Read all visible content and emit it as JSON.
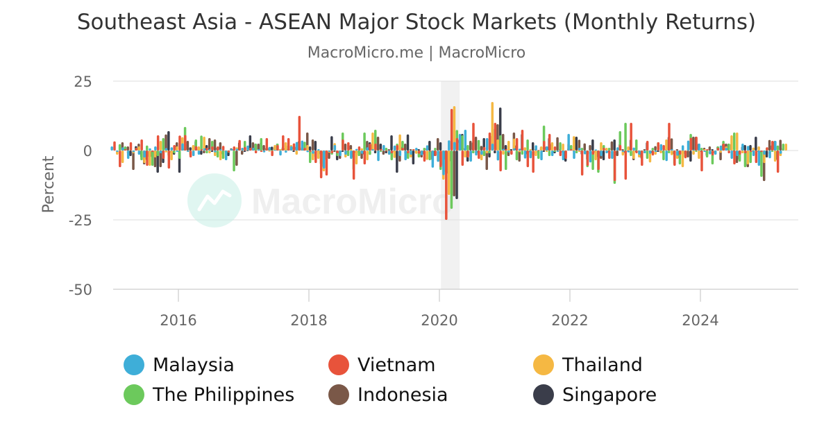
{
  "chart_data": {
    "type": "bar",
    "title": "Southeast Asia - ASEAN Major Stock Markets (Monthly Returns)",
    "subtitle": "MacroMicro.me | MacroMicro",
    "ylabel": "Percent",
    "ylim": [
      -50,
      25
    ],
    "yticks": [
      25,
      0,
      -25,
      -50
    ],
    "xticks": [
      "2016",
      "2018",
      "2020",
      "2022",
      "2024"
    ],
    "grid": true,
    "legend_position": "bottom",
    "watermark": "MacroMicro",
    "shaded_period": [
      "2020-02",
      "2020-04"
    ],
    "months": [
      "2015-02",
      "2015-03",
      "2015-04",
      "2015-05",
      "2015-06",
      "2015-07",
      "2015-08",
      "2015-09",
      "2015-10",
      "2015-11",
      "2015-12",
      "2016-01",
      "2016-02",
      "2016-03",
      "2016-04",
      "2016-05",
      "2016-06",
      "2016-07",
      "2016-08",
      "2016-09",
      "2016-10",
      "2016-11",
      "2016-12",
      "2017-01",
      "2017-02",
      "2017-03",
      "2017-04",
      "2017-05",
      "2017-06",
      "2017-07",
      "2017-08",
      "2017-09",
      "2017-10",
      "2017-11",
      "2017-12",
      "2018-01",
      "2018-02",
      "2018-03",
      "2018-04",
      "2018-05",
      "2018-06",
      "2018-07",
      "2018-08",
      "2018-09",
      "2018-10",
      "2018-11",
      "2018-12",
      "2019-01",
      "2019-02",
      "2019-03",
      "2019-04",
      "2019-05",
      "2019-06",
      "2019-07",
      "2019-08",
      "2019-09",
      "2019-10",
      "2019-11",
      "2019-12",
      "2020-01",
      "2020-02",
      "2020-03",
      "2020-04",
      "2020-05",
      "2020-06",
      "2020-07",
      "2020-08",
      "2020-09",
      "2020-10",
      "2020-11",
      "2020-12",
      "2021-01",
      "2021-02",
      "2021-03",
      "2021-04",
      "2021-05",
      "2021-06",
      "2021-07",
      "2021-08",
      "2021-09",
      "2021-10",
      "2021-11",
      "2021-12",
      "2022-01",
      "2022-02",
      "2022-03",
      "2022-04",
      "2022-05",
      "2022-06",
      "2022-07",
      "2022-08",
      "2022-09",
      "2022-10",
      "2022-11",
      "2022-12",
      "2023-01",
      "2023-02",
      "2023-03",
      "2023-04",
      "2023-05",
      "2023-06",
      "2023-07",
      "2023-08",
      "2023-09",
      "2023-10",
      "2023-11",
      "2023-12",
      "2024-01",
      "2024-02",
      "2024-03",
      "2024-04",
      "2024-05",
      "2024-06",
      "2024-07",
      "2024-08",
      "2024-09",
      "2024-10",
      "2024-11",
      "2024-12",
      "2025-01",
      "2025-02",
      "2025-03",
      "2025-04",
      "2025-05"
    ],
    "series": [
      {
        "name": "Malaysia",
        "color": "#3eaed8",
        "values": [
          1.5,
          -0.5,
          1.2,
          -3,
          -0.6,
          -1.5,
          -2.5,
          0.8,
          1.5,
          -1,
          0.9,
          1.2,
          -0.5,
          2.6,
          -0.5,
          -2,
          -1.5,
          0.8,
          0.5,
          -0.7,
          0.5,
          -3.5,
          0.6,
          0.7,
          1,
          1.8,
          1,
          0.5,
          -0.7,
          1.3,
          0.2,
          -1.8,
          -0.8,
          1.6,
          3.1,
          3.6,
          -0.6,
          -1.2,
          0.5,
          -6.5,
          -0.5,
          2,
          -2,
          -1.5,
          -3,
          0.6,
          -1.2,
          1.2,
          0.5,
          -3.8,
          2,
          -1.5,
          1.8,
          -2,
          -3.5,
          -1.5,
          1,
          -1.7,
          1.9,
          -6.2,
          -4.1,
          -8.9,
          3.7,
          3.1,
          6,
          7.5,
          -4,
          -1.8,
          -1.5,
          4.5,
          2.5,
          -3.6,
          0.6,
          -0.7,
          0.8,
          0.7,
          -2.9,
          -2.8,
          1.9,
          -3.5,
          1.5,
          -2,
          -0.5,
          -3.5,
          6,
          -3,
          1,
          -1.4,
          -4.3,
          0.4,
          -2,
          -1,
          -3,
          1.2,
          -0.5,
          -0.7,
          1.1,
          -1.5,
          -1,
          -1.2,
          -0.5,
          2.3,
          -3.8,
          0.5,
          -1.9,
          1.9,
          3.6,
          0.3,
          2.5,
          -0.5,
          -1.4,
          -1.5,
          1.8,
          1,
          -3,
          -2,
          2.5,
          1.7,
          -2,
          -5.5,
          -1.5,
          -2.8,
          3.5,
          -1.2
        ]
      },
      {
        "name": "Vietnam",
        "color": "#e8533b",
        "values": [
          3.3,
          -6,
          0.5,
          3,
          1,
          4,
          -5.5,
          -0.5,
          5.5,
          -3,
          -6.5,
          2,
          5.4,
          5.6,
          -2.5,
          1.6,
          0.5,
          1,
          1.5,
          1.5,
          1.7,
          -0.7,
          1.5,
          3.8,
          1.3,
          1,
          -1,
          -0.5,
          4.5,
          -2,
          2,
          5.5,
          4.5,
          2.6,
          12.5,
          1,
          -0.5,
          -4.5,
          -10,
          -9,
          -1,
          -1,
          4,
          3,
          -10.5,
          1.5,
          -5,
          2.5,
          2.5,
          0.6,
          -0.3,
          -1,
          2,
          1,
          -1,
          0.5,
          -1.2,
          -4,
          -0.4,
          -2,
          -6,
          -25,
          15,
          4.5,
          -5.5,
          -2.5,
          10,
          -3,
          1.3,
          6.5,
          10,
          -7.5,
          0.5,
          -1.5,
          4.5,
          7.5,
          -6,
          -8,
          0.2,
          3.5,
          6,
          1.5,
          -2,
          -3,
          0.5,
          0.2,
          -9,
          -5.5,
          -1.5,
          -7,
          1,
          -3,
          -11,
          2,
          -10.5,
          10,
          -1,
          -5.5,
          3.5,
          -1.8,
          3,
          2,
          10,
          -5.5,
          -1.5,
          -2.8,
          4.6,
          5,
          -7.5,
          0.5,
          -1.8,
          1,
          2.5,
          -1,
          -5,
          -1.5,
          -1,
          -0.5,
          -4.5,
          -0.5,
          1.2,
          3.5,
          -8
        ]
      },
      {
        "name": "Thailand",
        "color": "#f5b843",
        "values": [
          -1.5,
          -4.5,
          -1.2,
          -1,
          1.5,
          -4.5,
          -5.5,
          -2.5,
          3.5,
          -0.7,
          -3.5,
          1.5,
          4.8,
          -0.5,
          2,
          1.5,
          5,
          -1,
          -2,
          -3.5,
          -3,
          0.5,
          1.2,
          1,
          0.5,
          0.3,
          0.5,
          -0.5,
          -0.4,
          2,
          0.5,
          3,
          2,
          -1.5,
          1.5,
          2,
          -3.5,
          -3,
          -7.5,
          -0.8,
          2.7,
          -1,
          -2.5,
          0.5,
          -5,
          0.8,
          -3.5,
          6.5,
          -0.5,
          0.8,
          -1.5,
          -2.7,
          5.8,
          -1,
          -2.5,
          -1.2,
          -0.6,
          -3.4,
          -0.3,
          -3.9,
          -10.5,
          -16,
          16,
          3,
          -2.5,
          -2.5,
          -1,
          -3.5,
          -1,
          17.5,
          4,
          -1.5,
          3.5,
          4.3,
          -0.6,
          1.2,
          0.5,
          -2,
          1.5,
          -0.5,
          3,
          -0.5,
          2.5,
          2.6,
          5.2,
          -0.5,
          -0.6,
          -1.5,
          -3.5,
          3,
          1,
          -1,
          0.5,
          -1.8,
          1.5,
          -3,
          -2.5,
          -1,
          -4.3,
          -1.5,
          -1,
          4,
          -1.7,
          -3,
          -6,
          0.5,
          -1.5,
          -3,
          0.5,
          -1.2,
          -0.8,
          -0.8,
          1.5,
          5.5,
          6.5,
          -1,
          -5,
          1.1,
          1.5,
          -4.5,
          -1.5,
          -4,
          -2,
          2.5
        ]
      },
      {
        "name": "The Philippines",
        "color": "#6cc95c",
        "values": [
          2.3,
          1.5,
          0.3,
          1,
          -3.5,
          1.8,
          -5.5,
          -2,
          4.5,
          -2,
          -1,
          -3,
          8.5,
          -1.8,
          4,
          5.4,
          -1,
          3.5,
          -2.5,
          -3,
          -0.8,
          -7.5,
          0.5,
          3.5,
          1,
          2.5,
          4.5,
          1,
          0.2,
          2.5,
          1.5,
          2,
          1.5,
          3.2,
          3.2,
          -4.5,
          -2.5,
          -5,
          -3.5,
          -1.5,
          -2,
          6.5,
          -2,
          -7,
          -2,
          6.5,
          -1.6,
          7.5,
          -0.5,
          1,
          -3.5,
          2.5,
          3.5,
          -3,
          0.5,
          -2.5,
          1,
          -3.5,
          1,
          -7,
          -8,
          -21,
          7.4,
          5.5,
          2,
          -1,
          3.8,
          -2,
          -1,
          8,
          5.5,
          -7,
          -1,
          -3.5,
          -1.5,
          4,
          -2,
          -3,
          9,
          -2,
          -0.5,
          3,
          -0.5,
          2,
          -1,
          1,
          -6,
          -7,
          -8,
          2,
          1,
          -12,
          7,
          10,
          -2,
          4,
          -1,
          -3,
          1,
          3,
          -3.5,
          -1,
          -5,
          -5,
          -2.5,
          6,
          -0.5,
          1,
          -2.5,
          -5,
          1.5,
          3.5,
          2.5,
          6.5,
          -4,
          -6,
          -4.5,
          -0.5,
          -9.5,
          1,
          -0.5,
          1.8,
          2.5
        ]
      },
      {
        "name": "Indonesia",
        "color": "#7a5848",
        "values": [
          3,
          1.5,
          -7,
          2.5,
          -5,
          -2.5,
          -6,
          -6,
          5.8,
          -1,
          3,
          0.5,
          3.5,
          1.6,
          0.5,
          -1,
          4.5,
          4,
          3,
          -0.5,
          0.8,
          -5.5,
          -1.5,
          0,
          3,
          2.5,
          2,
          1,
          1.5,
          0.5,
          1,
          0.6,
          1.5,
          1,
          6.5,
          4,
          -0.4,
          -6,
          -3,
          -0.5,
          -3,
          2.5,
          2,
          -1,
          -3,
          3.5,
          2.5,
          5,
          -1.5,
          0.5,
          -0.5,
          -4,
          2.5,
          0.5,
          -1,
          -2.5,
          1,
          -3.5,
          4.5,
          -5.5,
          -8.5,
          -16.5,
          4,
          1,
          3.5,
          5,
          1.7,
          -7,
          5.5,
          9.5,
          6,
          -2,
          6.5,
          -4,
          0.2,
          -0.8,
          0.6,
          1.4,
          1.5,
          2.5,
          4.8,
          -0.9,
          0.8,
          -0.2,
          3.9,
          2.6,
          2,
          -1,
          -3,
          0.6,
          3.3,
          -2,
          0.5,
          -0.3,
          -3.5,
          0,
          0.5,
          -0.5,
          1.6,
          -0.5,
          0.5,
          4.4,
          0.5,
          -0.2,
          -2.5,
          5,
          2.5,
          1,
          1.5,
          -1,
          -3.5,
          2.5,
          2.5,
          -4.5,
          1.5,
          -6,
          -0.5,
          -0.5,
          -11,
          3.8,
          3.5,
          3.9
        ]
      },
      {
        "name": "Singapore",
        "color": "#3a3d4a",
        "values": [
          0.7,
          -2,
          1.6,
          -2.5,
          -3.5,
          -2.5,
          -8,
          -4.5,
          7,
          -1.5,
          -8,
          0.8,
          1.2,
          3.5,
          -1.5,
          2,
          -0.5,
          1.2,
          -1.5,
          -2,
          0.5,
          3,
          -0.5,
          5.5,
          2.5,
          3,
          1,
          1.4,
          2.5,
          1,
          0.6,
          -0.5,
          3.5,
          0.5,
          1.5,
          3.5,
          -1.5,
          -1.2,
          5.2,
          -3.5,
          -0.5,
          -0.5,
          -2.5,
          -1,
          -1.6,
          3,
          -1,
          2.5,
          -1,
          5.5,
          -8,
          1.5,
          5.8,
          -5,
          0.5,
          -1.5,
          3.5,
          -2,
          3,
          -3.5,
          -4,
          -17.5,
          6,
          -4,
          3,
          -1,
          4.5,
          -2.5,
          -1,
          15.5,
          2,
          0.5,
          2,
          6,
          -1.5,
          3,
          -1,
          -0.5,
          4.6,
          -1,
          0.5,
          -4,
          0.5,
          5,
          -1.5,
          -3.5,
          4,
          -2.5,
          -3.5,
          -0.8,
          4,
          2.5,
          -1,
          4,
          -0.5,
          -3,
          3,
          -1,
          -0.5,
          -1,
          5,
          -1.5,
          -3,
          -1.5,
          -4,
          5,
          -0.6,
          -2,
          0.5,
          1.5,
          2.5,
          2.5,
          -0.3,
          -3.5,
          2,
          2,
          5,
          -1,
          -2.5,
          2,
          -3.5,
          1
        ]
      }
    ]
  },
  "legend": {
    "items": [
      {
        "label": "Malaysia",
        "color": "#3eaed8"
      },
      {
        "label": "Vietnam",
        "color": "#e8533b"
      },
      {
        "label": "Thailand",
        "color": "#f5b843"
      },
      {
        "label": "The Philippines",
        "color": "#6cc95c"
      },
      {
        "label": "Indonesia",
        "color": "#7a5848"
      },
      {
        "label": "Singapore",
        "color": "#3a3d4a"
      }
    ]
  }
}
